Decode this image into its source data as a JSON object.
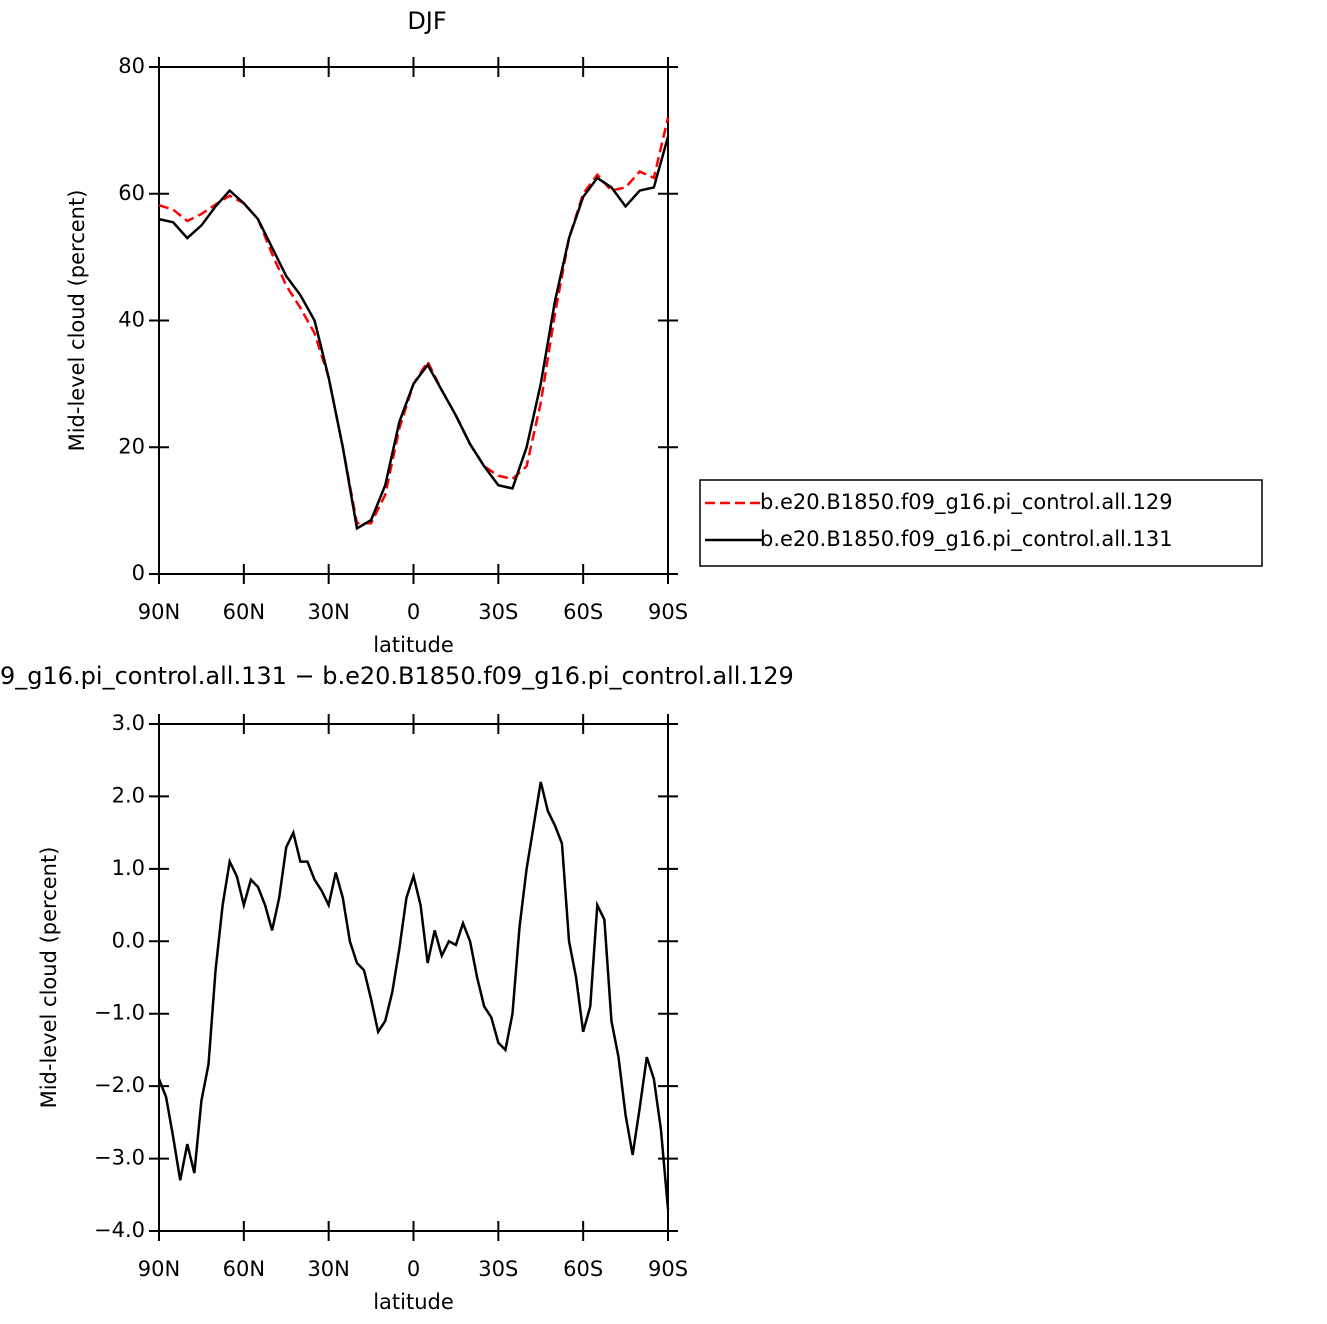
{
  "chart_data": [
    {
      "type": "line",
      "title": "DJF",
      "xlabel": "latitude",
      "ylabel": "Mid-level cloud (percent)",
      "x": [
        90,
        85,
        80,
        75,
        70,
        65,
        60,
        55,
        50,
        45,
        40,
        35,
        30,
        25,
        20,
        15,
        10,
        5,
        0,
        -5,
        -10,
        -15,
        -20,
        -25,
        -30,
        -35,
        -40,
        -45,
        -50,
        -55,
        -60,
        -65,
        -70,
        -75,
        -80,
        -85,
        -90
      ],
      "series": [
        {
          "name": "b.e20.B1850.f09_g16.pi_control.all.129",
          "color": "#ff0000",
          "linestyle": "dashed",
          "values": [
            58.2,
            57.5,
            55.7,
            56.8,
            58.3,
            59.7,
            58.5,
            56,
            50.5,
            45.5,
            42,
            38,
            31,
            20,
            8,
            8,
            12.5,
            23,
            30,
            33.5,
            29,
            25,
            20.5,
            17,
            15.5,
            15,
            17,
            27,
            41,
            53,
            60,
            63,
            60.5,
            61,
            63.5,
            62.5,
            72
          ]
        },
        {
          "name": "b.e20.B1850.f09_g16.pi_control.all.131",
          "color": "#000000",
          "linestyle": "solid",
          "values": [
            56,
            55.5,
            53,
            55,
            58,
            60.5,
            58.5,
            56,
            51.5,
            47,
            44,
            40,
            31,
            20,
            7.2,
            8.5,
            14,
            24,
            30,
            33,
            29,
            25,
            20.5,
            17,
            14,
            13.5,
            20,
            30,
            43,
            53,
            59.5,
            62.5,
            61,
            58,
            60.5,
            61,
            69
          ]
        }
      ],
      "xlim": [
        90,
        -90
      ],
      "xticks": [
        {
          "value": 90,
          "label": "90N"
        },
        {
          "value": 60,
          "label": "60N"
        },
        {
          "value": 30,
          "label": "30N"
        },
        0,
        {
          "value": -30,
          "label": "30S"
        },
        {
          "value": -60,
          "label": "60S"
        },
        {
          "value": -90,
          "label": "90S"
        }
      ],
      "ylim": [
        0,
        80
      ],
      "yticks": [
        0,
        20,
        40,
        60,
        80
      ],
      "legend": "right"
    },
    {
      "type": "line",
      "title": "9_g16.pi_control.all.131 − b.e20.B1850.f09_g16.pi_control.all.129",
      "xlabel": "latitude",
      "ylabel": "Mid-level cloud (percent)",
      "x": [
        90,
        87.5,
        85,
        82.5,
        80,
        77.5,
        75,
        72.5,
        70,
        67.5,
        65,
        62.5,
        60,
        57.5,
        55,
        52.5,
        50,
        47.5,
        45,
        42.5,
        40,
        37.5,
        35,
        32.5,
        30,
        27.5,
        25,
        22.5,
        20,
        17.5,
        15,
        12.5,
        10,
        7.5,
        5,
        2.5,
        0,
        -2.5,
        -5,
        -7.5,
        -10,
        -12.5,
        -15,
        -17.5,
        -20,
        -22.5,
        -25,
        -27.5,
        -30,
        -32.5,
        -35,
        -37.5,
        -40,
        -42.5,
        -45,
        -47.5,
        -50,
        -52.5,
        -55,
        -57.5,
        -60,
        -62.5,
        -65,
        -67.5,
        -70,
        -72.5,
        -75,
        -77.5,
        -80,
        -82.5,
        -85,
        -87.5,
        -90
      ],
      "series": [
        {
          "color": "#000000",
          "linestyle": "solid",
          "values": [
            -1.9,
            -2.15,
            -2.7,
            -3.3,
            -2.8,
            -3.2,
            -2.2,
            -1.7,
            -0.4,
            0.5,
            1.1,
            0.9,
            0.5,
            0.85,
            0.75,
            0.5,
            0.15,
            0.6,
            1.3,
            1.5,
            1.1,
            1.1,
            0.85,
            0.7,
            0.5,
            0.95,
            0.6,
            0,
            -0.3,
            -0.4,
            -0.8,
            -1.25,
            -1.1,
            -0.7,
            -0.1,
            0.6,
            0.9,
            0.5,
            -0.3,
            0.15,
            -0.2,
            0,
            -0.05,
            0.25,
            0,
            -0.5,
            -0.9,
            -1.05,
            -1.4,
            -1.5,
            -1,
            0.2,
            1,
            1.6,
            2.2,
            1.8,
            1.6,
            1.35,
            0,
            -0.5,
            -1.25,
            -0.9,
            0.5,
            0.3,
            -1.1,
            -1.6,
            -2.4,
            -2.95,
            -2.3,
            -1.6,
            -1.9,
            -2.6,
            -3.7
          ]
        }
      ],
      "xlim": [
        90,
        -90
      ],
      "xticks": [
        {
          "value": 90,
          "label": "90N"
        },
        {
          "value": 60,
          "label": "60N"
        },
        {
          "value": 30,
          "label": "30N"
        },
        0,
        {
          "value": -30,
          "label": "30S"
        },
        {
          "value": -60,
          "label": "60S"
        },
        {
          "value": -90,
          "label": "90S"
        }
      ],
      "ylim": [
        -4,
        3
      ],
      "yticks": [
        {
          "value": -4,
          "label": "−4.0"
        },
        {
          "value": -3,
          "label": "−3.0"
        },
        {
          "value": -2,
          "label": "−2.0"
        },
        {
          "value": -1,
          "label": "−1.0"
        },
        {
          "value": 0,
          "label": "0.0"
        },
        {
          "value": 1,
          "label": "1.0"
        },
        {
          "value": 2,
          "label": "2.0"
        },
        {
          "value": 3,
          "label": "3.0"
        }
      ]
    }
  ]
}
